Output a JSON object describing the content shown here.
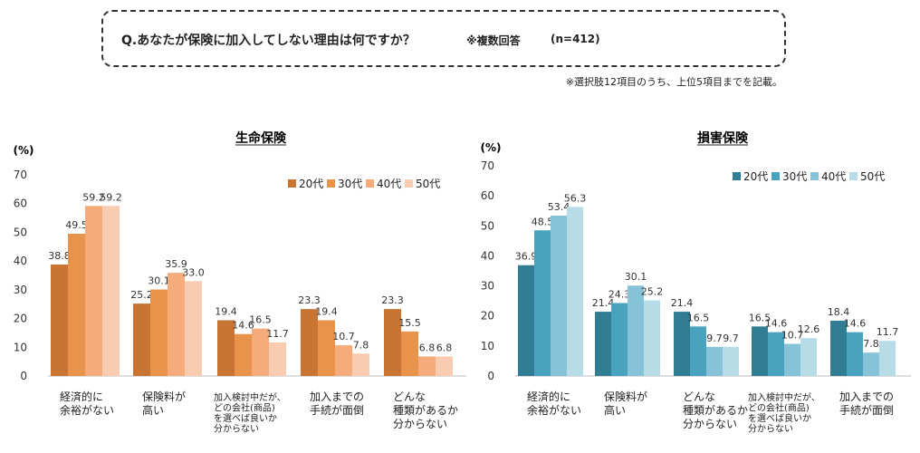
{
  "header": {
    "question": "Q.あなたが保険に加入してしない理由は何ですか？",
    "multiple_answer": "※複数回答",
    "sample_size": "(n=412)",
    "note": "※選択肢12項目のうち、上位5項目までを記載。"
  },
  "chart_data": [
    {
      "type": "bar",
      "title": "生命保険",
      "ylabel": "(%)",
      "ylim": [
        0,
        70
      ],
      "yticks": [
        "0",
        "10",
        "20",
        "30",
        "40",
        "50",
        "60",
        "70"
      ],
      "categories": [
        [
          "経済的に",
          "余裕がない"
        ],
        [
          "保険料が",
          "高い"
        ],
        [
          "加入検討中だが、",
          "どの会社(商品)",
          "を選べば良いか",
          "分からない"
        ],
        [
          "加入までの",
          "手続が面倒"
        ],
        [
          "どんな",
          "種類があるか",
          "分からない"
        ]
      ],
      "legend_position": "top-right",
      "series": [
        {
          "name": "20代",
          "color": "#c87533",
          "values": [
            38.8,
            25.2,
            19.4,
            23.3,
            23.3
          ]
        },
        {
          "name": "30代",
          "color": "#e8924a",
          "values": [
            49.5,
            30.1,
            14.6,
            19.4,
            15.5
          ]
        },
        {
          "name": "40代",
          "color": "#f6ab7b",
          "values": [
            59.2,
            35.9,
            16.5,
            10.7,
            6.8
          ]
        },
        {
          "name": "50代",
          "color": "#f9cbb0",
          "values": [
            59.2,
            33.0,
            11.7,
            7.8,
            6.8
          ]
        }
      ],
      "labels": [
        [
          "38.8",
          "25.2",
          "19.4",
          "23.3",
          "23.3"
        ],
        [
          "49.5",
          "30.1",
          "14.6",
          "19.4",
          "15.5"
        ],
        [
          "59.2",
          "35.9",
          "16.5",
          "10.7",
          "6.8"
        ],
        [
          "59.2",
          "33.0",
          "11.7",
          "7.8",
          "6.8"
        ]
      ]
    },
    {
      "type": "bar",
      "title": "損害保険",
      "ylabel": "(%)",
      "ylim": [
        0,
        70
      ],
      "yticks": [
        "0",
        "10",
        "20",
        "30",
        "40",
        "50",
        "60",
        "70"
      ],
      "categories": [
        [
          "経済的に",
          "余裕がない"
        ],
        [
          "保険料が",
          "高い"
        ],
        [
          "どんな",
          "種類があるか",
          "分からない"
        ],
        [
          "加入検討中だが、",
          "どの会社(商品)",
          "を選べば良いか",
          "分からない"
        ],
        [
          "加入までの",
          "手続が面倒"
        ]
      ],
      "legend_position": "top-right",
      "series": [
        {
          "name": "20代",
          "color": "#317d93",
          "values": [
            36.9,
            21.4,
            21.4,
            16.5,
            18.4
          ]
        },
        {
          "name": "30代",
          "color": "#4aa3be",
          "values": [
            48.5,
            24.3,
            16.5,
            14.6,
            14.6
          ]
        },
        {
          "name": "40代",
          "color": "#86c3d8",
          "values": [
            53.4,
            30.1,
            9.7,
            10.7,
            7.8
          ]
        },
        {
          "name": "50代",
          "color": "#b7dce8",
          "values": [
            56.3,
            25.2,
            9.7,
            12.6,
            11.7
          ]
        }
      ],
      "labels": [
        [
          "36.9",
          "21.4",
          "21.4",
          "16.5",
          "18.4"
        ],
        [
          "48.5",
          "24.3",
          "16.5",
          "14.6",
          "14.6"
        ],
        [
          "53.4",
          "30.1",
          "9.7",
          "10.7",
          "7.8"
        ],
        [
          "56.3",
          "25.2",
          "9.7",
          "12.6",
          "11.7"
        ]
      ]
    }
  ]
}
